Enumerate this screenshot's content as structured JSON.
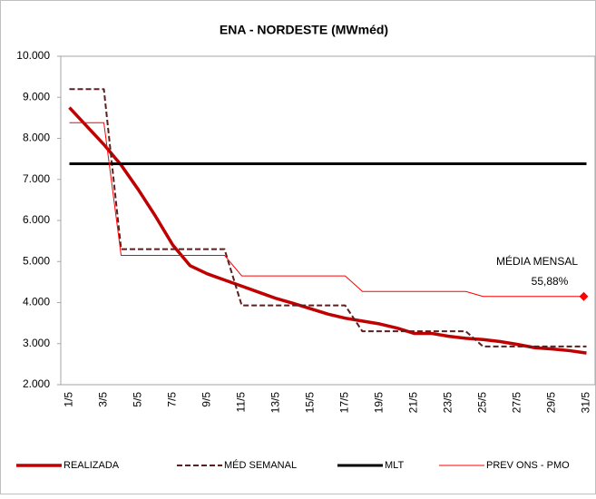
{
  "chart_data": {
    "type": "line",
    "title": "ENA - NORDESTE (MWméd)",
    "categories": [
      "1/5",
      null,
      "3/5",
      null,
      "5/5",
      null,
      "7/5",
      null,
      "9/5",
      null,
      "11/5",
      null,
      "13/5",
      null,
      "15/5",
      null,
      "17/5",
      null,
      "19/5",
      null,
      "21/5",
      null,
      "23/5",
      null,
      "25/5",
      null,
      "27/5",
      null,
      "29/5",
      null,
      "31/5"
    ],
    "series": [
      {
        "name": "REALIZADA",
        "color": "#c00000",
        "style": "solid",
        "width": 3.5,
        "values": [
          8750,
          8300,
          7850,
          7350,
          6750,
          6100,
          5400,
          4900,
          4700,
          4550,
          4400,
          4250,
          4100,
          3980,
          3850,
          3720,
          3620,
          3550,
          3480,
          3380,
          3250,
          3250,
          3180,
          3130,
          3100,
          3050,
          2980,
          2900,
          2870,
          2830,
          2770
        ]
      },
      {
        "name": "MÉD SEMANAL",
        "color": "#5b1f1f",
        "style": "dashed",
        "width": 2,
        "values": [
          9200,
          9200,
          9200,
          5300,
          5300,
          5300,
          5300,
          5300,
          5300,
          5300,
          3930,
          3930,
          3930,
          3930,
          3930,
          3930,
          3930,
          3300,
          3300,
          3300,
          3300,
          3300,
          3300,
          3300,
          2930,
          2930,
          2930,
          2930,
          2930,
          2930,
          2930
        ]
      },
      {
        "name": "MLT",
        "color": "#000000",
        "style": "solid",
        "width": 3,
        "values": [
          7380,
          7380,
          7380,
          7380,
          7380,
          7380,
          7380,
          7380,
          7380,
          7380,
          7380,
          7380,
          7380,
          7380,
          7380,
          7380,
          7380,
          7380,
          7380,
          7380,
          7380,
          7380,
          7380,
          7380,
          7380,
          7380,
          7380,
          7380,
          7380,
          7380,
          7380
        ]
      },
      {
        "name": "PREV ONS - PMO",
        "color": "#ff0000",
        "style": "solid",
        "width": 1,
        "values": [
          8380,
          8380,
          8380,
          5150,
          5150,
          5150,
          5150,
          5150,
          5150,
          5150,
          4650,
          4650,
          4650,
          4650,
          4650,
          4650,
          4650,
          4270,
          4270,
          4270,
          4270,
          4270,
          4270,
          4270,
          4150,
          4150,
          4150,
          4150,
          4150,
          4150,
          4150
        ]
      }
    ],
    "annotations": [
      "MÉDIA MENSAL",
      "55,88%"
    ],
    "ylim": [
      2000,
      10000
    ],
    "yticks": [
      {
        "value": 2000,
        "label": "2.000"
      },
      {
        "value": 3000,
        "label": "3.000"
      },
      {
        "value": 4000,
        "label": "4.000"
      },
      {
        "value": 5000,
        "label": "5.000"
      },
      {
        "value": 6000,
        "label": "6.000"
      },
      {
        "value": 7000,
        "label": "7.000"
      },
      {
        "value": 8000,
        "label": "8.000"
      },
      {
        "value": 9000,
        "label": "9.000"
      },
      {
        "value": 10000,
        "label": "10.000"
      }
    ],
    "grid": false
  }
}
